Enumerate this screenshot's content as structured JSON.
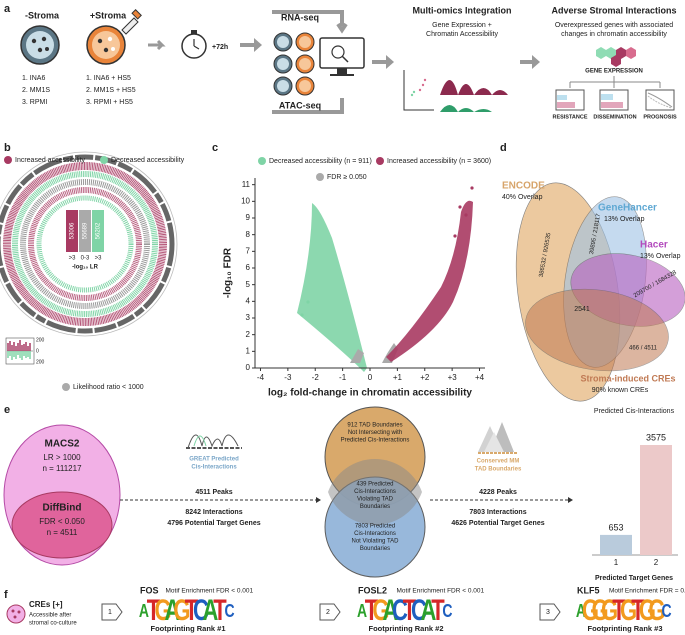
{
  "panel_a": {
    "label": "a",
    "minus_stroma": "-Stroma",
    "plus_stroma": "+Stroma",
    "minus_list": [
      "1.  INA6",
      "2.  MM1S",
      "3.  RPMI"
    ],
    "plus_list": [
      "1.  INA6 + HS5",
      "2.  MM1S + HS5",
      "3.  RPMI + HS5"
    ],
    "time": "+72h",
    "rna": "RNA-seq",
    "atac": "ATAC-seq",
    "integration_title": "Multi-omics Integration",
    "integration_sub": [
      "Gene Expression +",
      "Chromatin Accessibility"
    ],
    "adverse_title": "Adverse Stromal Interactions",
    "adverse_sub": [
      "Overexpressed genes with associated",
      "changes in chromatin accessibility"
    ],
    "gene_expression": "GENE EXPRESSION",
    "outcomes": [
      "RESISTANCE",
      "DISSEMINATION",
      "PROGNOSIS"
    ]
  },
  "panel_b": {
    "label": "b",
    "legend": [
      "Increased accessibility",
      "Decreased accessibility"
    ],
    "counts": [
      "53006",
      "55689",
      "56202"
    ],
    "ranges": [
      ">3",
      "0-3",
      ">3"
    ],
    "scale_label": "-log₁₀ LR",
    "footer": "Likelihood ratio < 1000",
    "inset_ticks": [
      "200",
      "0",
      "200"
    ]
  },
  "panel_c": {
    "label": "c",
    "chart_data": {
      "type": "scatter",
      "legend": [
        {
          "name": "Decreased accessibility (n = 911)",
          "color": "#7fd4a6"
        },
        {
          "name": "Increased accessibility (n = 3600)",
          "color": "#a83a62"
        },
        {
          "name": "FDR ≥ 0.050",
          "color": "#aaaaaa"
        }
      ],
      "xlabel": "log₂ fold-change in chromatin accessibility",
      "ylabel": "-log₁₀ FDR",
      "xlim": [
        -4.2,
        4.2
      ],
      "ylim": [
        0,
        11.4
      ],
      "xticks": [
        -4,
        -3,
        -2,
        -1,
        0,
        {
          "value": 1,
          "label": "+1"
        },
        {
          "value": 2,
          "label": "+2"
        },
        {
          "value": 3,
          "label": "+3"
        },
        {
          "value": 4,
          "label": "+4"
        }
      ],
      "yticks": [
        0,
        1,
        2,
        3,
        4,
        5,
        6,
        7,
        8,
        9,
        10,
        11
      ]
    }
  },
  "panel_d": {
    "label": "d",
    "encode": "ENCODE",
    "encode_overlap": "40% Overlap",
    "genehancer": "GeneHancer",
    "genehancer_overlap": "13% Overlap",
    "hacer": "Hacer",
    "hacer_overlap": "13% Overlap",
    "encode_count": "386532 / 926535",
    "genehancer_count": "39895 / 218117",
    "hacer_count": "209700 / 1684328",
    "center": "2541",
    "stroma_count": "466 / 4511",
    "stroma": "Stroma-induced CREs",
    "stroma_sub": "90% known CREs"
  },
  "panel_e": {
    "label": "e",
    "macs2": "MACS2",
    "macs2_lines": [
      "LR > 1000",
      "n = 111217"
    ],
    "diffbind": "DiffBind",
    "diffbind_lines": [
      "FDR < 0.050",
      "n = 4511"
    ],
    "great": [
      "GREAT Predicted",
      "Cis-Interactions"
    ],
    "step1": [
      "4511 Peaks",
      "8242 Interactions",
      "4796 Potential Target Genes"
    ],
    "tad_top": [
      "912 TAD Boundaries",
      "Not Intersecting with",
      "Predicted Cis-Interactions"
    ],
    "tad_mid": [
      "439 Predicted",
      "Cis-Interactions",
      "Violating TAD",
      "Boundaries"
    ],
    "tad_bottom": [
      "7803 Predicted",
      "Cis-Interactions",
      "Not Violating TAD",
      "Boundaries"
    ],
    "conserved": [
      "Conserved MM",
      "TAD Boundaries"
    ],
    "step2": [
      "4228 Peaks",
      "7803 Interactions",
      "4626 Potential Target Genes"
    ],
    "chart_data": {
      "type": "bar",
      "title": "Predicted Cis-Interactions",
      "xlabel": "Predicted Target Genes",
      "categories": [
        "1",
        "2"
      ],
      "values": [
        653,
        3575
      ],
      "colors": [
        "#b9cbdc",
        "#ecc9c9"
      ]
    }
  },
  "panel_f": {
    "label": "f",
    "cre_title": "CREs [+]",
    "cre_sub": [
      "Accessible after",
      "stromal co-culture"
    ],
    "steps": [
      "1",
      "2",
      "3"
    ],
    "letter_colors": {
      "A": "#2ca02c",
      "C": "#1f5fbf",
      "G": "#f29a1e",
      "T": "#d62728"
    },
    "motifs": [
      {
        "name": "FOS",
        "enrichment": "Motif Enrichment FDR < 0.001",
        "rank": "Footprinting Rank #1",
        "logo": [
          "A",
          "T",
          "G",
          "A",
          "G",
          "T",
          "C",
          "A",
          "T",
          "C"
        ]
      },
      {
        "name": "FOSL2",
        "enrichment": "Motif Enrichment FDR < 0.001",
        "rank": "Footprinting Rank #2",
        "logo": [
          "A",
          "T",
          "G",
          "A",
          "C",
          "T",
          "C",
          "A",
          "T",
          "C"
        ]
      },
      {
        "name": "KLF5",
        "enrichment": "Motif Enrichment  FDR = 0.001",
        "rank": "Footprinting Rank #3",
        "logo": [
          "A",
          "G",
          "G",
          "G",
          "T",
          "G",
          "T",
          "G",
          "G",
          "C"
        ]
      }
    ]
  }
}
